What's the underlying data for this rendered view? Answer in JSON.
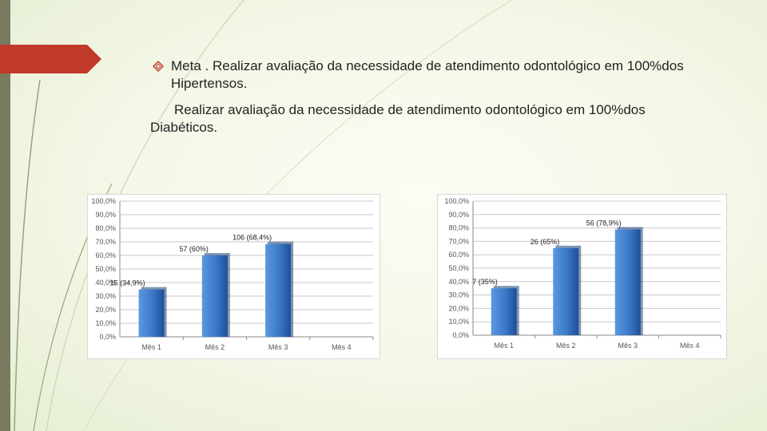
{
  "slide": {
    "bullet_text": "Meta . Realizar avaliação da necessidade de atendimento odontológico em 100%dos Hipertensos.",
    "paragraph_text": "Realizar avaliação da necessidade de atendimento odontológico em 100%dos Diabéticos.",
    "bullet_icon": "diamond-outline-icon"
  },
  "colors": {
    "bar_fill": "#3a78c8",
    "bar_dark": "#1f4f96",
    "accent_red": "#c0392b"
  },
  "chart_data": [
    {
      "type": "bar",
      "categories": [
        "Mês 1",
        "Mês 2",
        "Mês 3",
        "Mês 4"
      ],
      "values": [
        34.9,
        60,
        68.4,
        null
      ],
      "data_labels": [
        "15 (34,9%)",
        "57 (60%)",
        "106 (68,4%)",
        ""
      ],
      "yticks": [
        "0,0%",
        "10,0%",
        "20,0%",
        "30,0%",
        "40,0%",
        "50,0%",
        "60,0%",
        "70,0%",
        "80,0%",
        "90,0%",
        "100,0%"
      ],
      "ylim": [
        0,
        100
      ],
      "grid": true,
      "title": "",
      "xlabel": "",
      "ylabel": ""
    },
    {
      "type": "bar",
      "categories": [
        "Mês 1",
        "Mês 2",
        "Mês 3",
        "Mês 4"
      ],
      "values": [
        35,
        65,
        78.9,
        null
      ],
      "data_labels": [
        "7 (35%)",
        "26 (65%)",
        "56 (78,9%)",
        ""
      ],
      "yticks": [
        "0,0%",
        "10,0%",
        "20,0%",
        "30,0%",
        "40,0%",
        "50,0%",
        "60,0%",
        "70,0%",
        "80,0%",
        "90,0%",
        "100,0%"
      ],
      "ylim": [
        0,
        100
      ],
      "grid": true,
      "title": "",
      "xlabel": "",
      "ylabel": ""
    }
  ]
}
